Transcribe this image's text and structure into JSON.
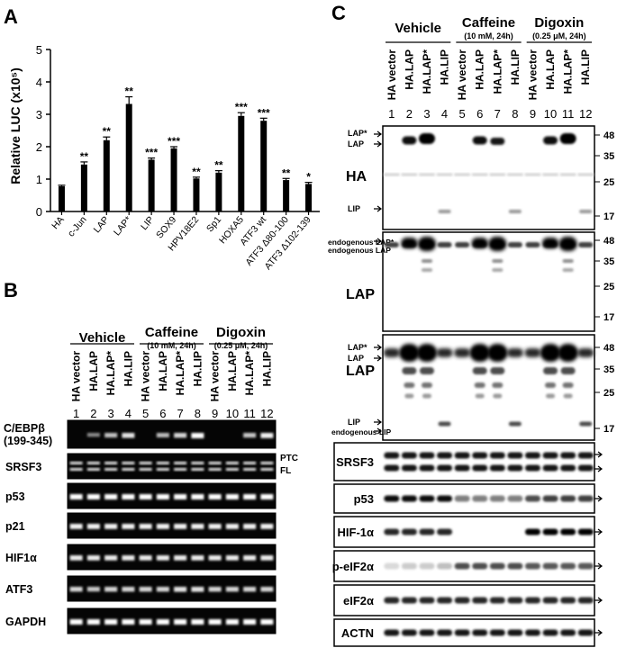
{
  "panelA": {
    "letter": "A",
    "ylabel": "Relative LUC (x10⁵)",
    "yticks": [
      "0",
      "1",
      "2",
      "3",
      "4",
      "5"
    ],
    "chart_data": {
      "type": "bar",
      "categories": [
        "HA",
        "c-Jun",
        "LAP",
        "LAP*",
        "LIP",
        "SOX9",
        "HPV18E2",
        "Sp1",
        "HOXA5",
        "ATF3 wt",
        "ATF3 Δ80-100",
        "ATF3 Δ102-139"
      ],
      "values": [
        0.78,
        1.45,
        2.2,
        3.32,
        1.6,
        1.95,
        1.02,
        1.2,
        2.95,
        2.8,
        0.97,
        0.85
      ],
      "errors": [
        0.03,
        0.08,
        0.1,
        0.22,
        0.05,
        0.05,
        0.04,
        0.06,
        0.1,
        0.08,
        0.05,
        0.05
      ],
      "significance": [
        "",
        "**",
        "**",
        "**",
        "***",
        "***",
        "**",
        "**",
        "***",
        "***",
        "**",
        "*"
      ],
      "ylim": [
        0,
        5
      ],
      "ylabel": "Relative LUC (x10⁵)"
    }
  },
  "panelB": {
    "letter": "B",
    "groups": [
      {
        "name": "Vehicle",
        "sub": ""
      },
      {
        "name": "Caffeine",
        "sub": "(10 mM, 24h)"
      },
      {
        "name": "Digoxin",
        "sub": "(0.25 μM, 24h)"
      }
    ],
    "lanes": [
      "HA vector",
      "HA.LAP",
      "HA.LAP*",
      "HA.LIP",
      "HA vector",
      "HA.LAP",
      "HA.LAP*",
      "HA.LIP",
      "HA vector",
      "HA.LAP",
      "HA.LAP*",
      "HA.LIP"
    ],
    "numbers": [
      "1",
      "2",
      "3",
      "4",
      "5",
      "6",
      "7",
      "8",
      "9",
      "10",
      "11",
      "12"
    ],
    "rows": [
      {
        "label": "C/EBPβ",
        "label2": "(199-345)"
      },
      {
        "label": "SRSF3",
        "label2": ""
      },
      {
        "label": "p53",
        "label2": ""
      },
      {
        "label": "p21",
        "label2": ""
      },
      {
        "label": "HIF1α",
        "label2": ""
      },
      {
        "label": "ATF3",
        "label2": ""
      },
      {
        "label": "GAPDH",
        "label2": ""
      }
    ],
    "ptc": "PTC",
    "fl": "FL"
  },
  "panelC": {
    "letter": "C",
    "groups": [
      {
        "name": "Vehicle",
        "sub": ""
      },
      {
        "name": "Caffeine",
        "sub": "(10 mM, 24h)"
      },
      {
        "name": "Digoxin",
        "sub": "(0.25 μM, 24h)"
      }
    ],
    "lanes": [
      "HA vector",
      "HA.LAP",
      "HA.LAP*",
      "HA.LIP",
      "HA vector",
      "HA.LAP",
      "HA.LAP*",
      "HA.LIP",
      "HA vector",
      "HA.LAP",
      "HA.LAP*",
      "HA.LIP"
    ],
    "numbers": [
      "1",
      "2",
      "3",
      "4",
      "5",
      "6",
      "7",
      "8",
      "9",
      "10",
      "11",
      "12"
    ],
    "blot1": {
      "title": "HA",
      "lapstar": "LAP*",
      "lap": "LAP",
      "lip": "LIP",
      "mw": [
        "48",
        "35",
        "25",
        "17"
      ]
    },
    "blot2": {
      "title": "LAP",
      "endo_lapstar": "endogenous LAP*",
      "endo_lap": "endogenous LAP",
      "mw": [
        "48",
        "35",
        "25",
        "17"
      ]
    },
    "blot3": {
      "title": "LAP",
      "lapstar": "LAP*",
      "lap": "LAP",
      "lip": "LIP",
      "endo_lip": "endogenous LIP",
      "mw": [
        "48",
        "35",
        "25",
        "17"
      ]
    },
    "small": [
      "SRSF3",
      "p53",
      "HIF-1α",
      "p-eIF2α",
      "eIF2α",
      "ACTN"
    ]
  }
}
